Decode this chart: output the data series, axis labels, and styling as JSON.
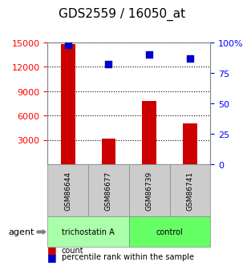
{
  "title": "GDS2559 / 16050_at",
  "samples": [
    "GSM86644",
    "GSM86677",
    "GSM86739",
    "GSM86741"
  ],
  "counts": [
    14800,
    3200,
    7800,
    5000
  ],
  "percentiles": [
    98,
    82,
    90,
    87
  ],
  "ylim_left": [
    0,
    15000
  ],
  "ylim_right": [
    0,
    100
  ],
  "yticks_left": [
    3000,
    6000,
    9000,
    12000,
    15000
  ],
  "yticks_right": [
    0,
    25,
    50,
    75,
    100
  ],
  "yticklabels_right": [
    "0",
    "25",
    "50",
    "75",
    "100%"
  ],
  "bar_color": "#cc0000",
  "dot_color": "#0000cc",
  "groups": [
    {
      "label": "trichostatin A",
      "samples": [
        0,
        1
      ],
      "color": "#aaffaa"
    },
    {
      "label": "control",
      "samples": [
        2,
        3
      ],
      "color": "#66ff66"
    }
  ],
  "agent_label": "agent",
  "legend_count_label": "count",
  "legend_percentile_label": "percentile rank within the sample",
  "grid_color": "#000000",
  "background_color": "#ffffff",
  "plot_bg": "#ffffff",
  "sample_box_color": "#cccccc",
  "title_fontsize": 11,
  "tick_fontsize": 8,
  "label_fontsize": 8
}
